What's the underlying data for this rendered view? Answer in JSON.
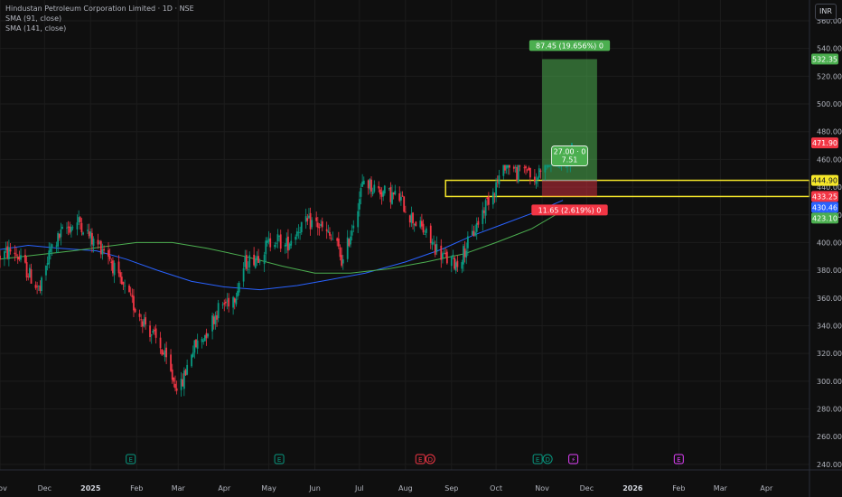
{
  "legend": {
    "title": "Hindustan Petroleum Corporation Limited · 1D · NSE",
    "sma1": "SMA (91, close)",
    "sma2": "SMA (141, close)"
  },
  "currency_button": "INR",
  "colors": {
    "background": "#0f0f0f",
    "grid": "#1c1c1c",
    "up": "#089981",
    "down": "#f23645",
    "sma91": "#2962ff",
    "sma141": "#4caf50",
    "zone": "#f5e72a",
    "target_zone": "#4caf50",
    "stop_zone": "#f23645"
  },
  "chart_data": {
    "type": "candlestick",
    "instrument": "Hindustan Petroleum Corporation Limited",
    "interval": "1D",
    "exchange": "NSE",
    "y_axis": {
      "range": [
        236,
        575
      ],
      "ticks": [
        240,
        260,
        280,
        300,
        320,
        340,
        360,
        380,
        400,
        420,
        440,
        460,
        480,
        500,
        520,
        540,
        560
      ]
    },
    "x_axis": {
      "range": [
        "2024-11-01",
        "2026-04-30"
      ],
      "labels": [
        {
          "date": "2024-11-01",
          "label": "Nov"
        },
        {
          "date": "2024-12-01",
          "label": "Dec"
        },
        {
          "date": "2025-01-01",
          "label": "2025"
        },
        {
          "date": "2025-02-01",
          "label": "Feb"
        },
        {
          "date": "2025-03-01",
          "label": "Mar"
        },
        {
          "date": "2025-04-01",
          "label": "Apr"
        },
        {
          "date": "2025-05-01",
          "label": "May"
        },
        {
          "date": "2025-06-01",
          "label": "Jun"
        },
        {
          "date": "2025-07-01",
          "label": "Jul"
        },
        {
          "date": "2025-08-01",
          "label": "Aug"
        },
        {
          "date": "2025-09-01",
          "label": "Sep"
        },
        {
          "date": "2025-10-01",
          "label": "Oct"
        },
        {
          "date": "2025-11-01",
          "label": "Nov"
        },
        {
          "date": "2025-12-01",
          "label": "Dec"
        },
        {
          "date": "2026-01-01",
          "label": "2026"
        },
        {
          "date": "2026-02-01",
          "label": "Feb"
        },
        {
          "date": "2026-03-01",
          "label": "Mar"
        },
        {
          "date": "2026-04-01",
          "label": "Apr"
        }
      ]
    },
    "price_path": [
      [
        "2024-11-01",
        390
      ],
      [
        "2024-11-10",
        395
      ],
      [
        "2024-11-20",
        378
      ],
      [
        "2024-11-28",
        365
      ],
      [
        "2024-12-05",
        395
      ],
      [
        "2024-12-15",
        410
      ],
      [
        "2024-12-25",
        415
      ],
      [
        "2025-01-03",
        400
      ],
      [
        "2025-01-12",
        395
      ],
      [
        "2025-01-20",
        372
      ],
      [
        "2025-01-28",
        358
      ],
      [
        "2025-02-08",
        340
      ],
      [
        "2025-02-18",
        322
      ],
      [
        "2025-02-26",
        300
      ],
      [
        "2025-03-03",
        296
      ],
      [
        "2025-03-10",
        322
      ],
      [
        "2025-03-18",
        332
      ],
      [
        "2025-03-28",
        352
      ],
      [
        "2025-04-08",
        362
      ],
      [
        "2025-04-15",
        385
      ],
      [
        "2025-04-25",
        392
      ],
      [
        "2025-05-05",
        404
      ],
      [
        "2025-05-12",
        397
      ],
      [
        "2025-05-22",
        412
      ],
      [
        "2025-06-01",
        415
      ],
      [
        "2025-06-10",
        405
      ],
      [
        "2025-06-15",
        400
      ],
      [
        "2025-06-20",
        385
      ],
      [
        "2025-06-28",
        420
      ],
      [
        "2025-07-04",
        445
      ],
      [
        "2025-07-10",
        440
      ],
      [
        "2025-07-18",
        436
      ],
      [
        "2025-07-28",
        432
      ],
      [
        "2025-08-05",
        418
      ],
      [
        "2025-08-12",
        410
      ],
      [
        "2025-08-20",
        398
      ],
      [
        "2025-08-28",
        388
      ],
      [
        "2025-09-05",
        385
      ],
      [
        "2025-09-15",
        405
      ],
      [
        "2025-09-25",
        430
      ],
      [
        "2025-10-02",
        444
      ],
      [
        "2025-10-08",
        460
      ],
      [
        "2025-10-15",
        450
      ],
      [
        "2025-10-22",
        455
      ],
      [
        "2025-10-27",
        440
      ],
      [
        "2025-11-01",
        460
      ],
      [
        "2025-11-05",
        480
      ],
      [
        "2025-11-12",
        488
      ],
      [
        "2025-11-17",
        484
      ],
      [
        "2025-11-21",
        472
      ]
    ],
    "candle_range": [
      285,
      456
    ],
    "last_close": 471.9,
    "series": [
      {
        "name": "SMA (91, close)",
        "points": [
          [
            "2024-11-01",
            395
          ],
          [
            "2024-11-20",
            398
          ],
          [
            "2024-12-10",
            396
          ],
          [
            "2025-01-05",
            394
          ],
          [
            "2025-01-25",
            388
          ],
          [
            "2025-02-15",
            380
          ],
          [
            "2025-03-10",
            372
          ],
          [
            "2025-04-01",
            368
          ],
          [
            "2025-04-25",
            366
          ],
          [
            "2025-05-20",
            369
          ],
          [
            "2025-06-10",
            373
          ],
          [
            "2025-07-05",
            378
          ],
          [
            "2025-08-01",
            386
          ],
          [
            "2025-08-25",
            395
          ],
          [
            "2025-09-15",
            405
          ],
          [
            "2025-10-05",
            413
          ],
          [
            "2025-10-25",
            421
          ],
          [
            "2025-11-15",
            430.46
          ]
        ]
      },
      {
        "name": "SMA (141, close)",
        "points": [
          [
            "2024-11-01",
            388
          ],
          [
            "2024-11-25",
            391
          ],
          [
            "2024-12-20",
            394
          ],
          [
            "2025-01-10",
            397
          ],
          [
            "2025-02-01",
            400
          ],
          [
            "2025-02-25",
            400
          ],
          [
            "2025-03-20",
            396
          ],
          [
            "2025-04-15",
            390
          ],
          [
            "2025-05-10",
            383
          ],
          [
            "2025-06-01",
            378
          ],
          [
            "2025-06-25",
            378
          ],
          [
            "2025-07-20",
            381
          ],
          [
            "2025-08-15",
            386
          ],
          [
            "2025-09-10",
            392
          ],
          [
            "2025-10-01",
            400
          ],
          [
            "2025-10-25",
            410
          ],
          [
            "2025-11-15",
            423.1
          ]
        ]
      }
    ],
    "zone_box": {
      "from": "2025-08-28",
      "to": "2026-04-30",
      "top": 444.9,
      "bottom": 433.25
    },
    "position": {
      "from": "2025-11-01",
      "to": "2025-12-08",
      "entry": 444.9,
      "target": 532.35,
      "stop": 433.25,
      "target_label": "87.45 (19.656%) 0",
      "stop_label": "11.65 (2.619%) 0",
      "ratio_label": "27.00 · 0",
      "ratio_value": "7.51"
    },
    "price_tags": [
      {
        "value": "532.35",
        "price": 532.35,
        "bg": "#4caf50",
        "fg": "#ffffff"
      },
      {
        "value": "471.90",
        "price": 471.9,
        "bg": "#f23645",
        "fg": "#ffffff"
      },
      {
        "value": "444.90",
        "price": 444.9,
        "bg": "#f5e72a",
        "fg": "#131722"
      },
      {
        "value": "433.25",
        "price": 433.25,
        "bg": "#f23645",
        "fg": "#ffffff"
      },
      {
        "value": "430.46",
        "price": 430.46,
        "bg": "#2962ff",
        "fg": "#ffffff"
      },
      {
        "value": "423.10",
        "price": 423.1,
        "bg": "#4caf50",
        "fg": "#ffffff"
      }
    ],
    "events": [
      {
        "date": "2025-01-28",
        "kind": "earnings",
        "labels": [
          "E"
        ],
        "color": "#089981"
      },
      {
        "date": "2025-05-08",
        "kind": "earnings",
        "labels": [
          "E"
        ],
        "color": "#089981"
      },
      {
        "date": "2025-08-11",
        "kind": "earnings-dividend",
        "labels": [
          "E",
          "D"
        ],
        "color": "#f23645"
      },
      {
        "date": "2025-10-29",
        "kind": "earnings-dividend",
        "labels": [
          "E",
          "D"
        ],
        "color": "#089981"
      },
      {
        "date": "2025-11-22",
        "kind": "split",
        "labels": [
          "⚡"
        ],
        "color": "#e040fb"
      },
      {
        "date": "2026-02-01",
        "kind": "earnings",
        "labels": [
          "E"
        ],
        "color": "#e040fb"
      }
    ]
  }
}
